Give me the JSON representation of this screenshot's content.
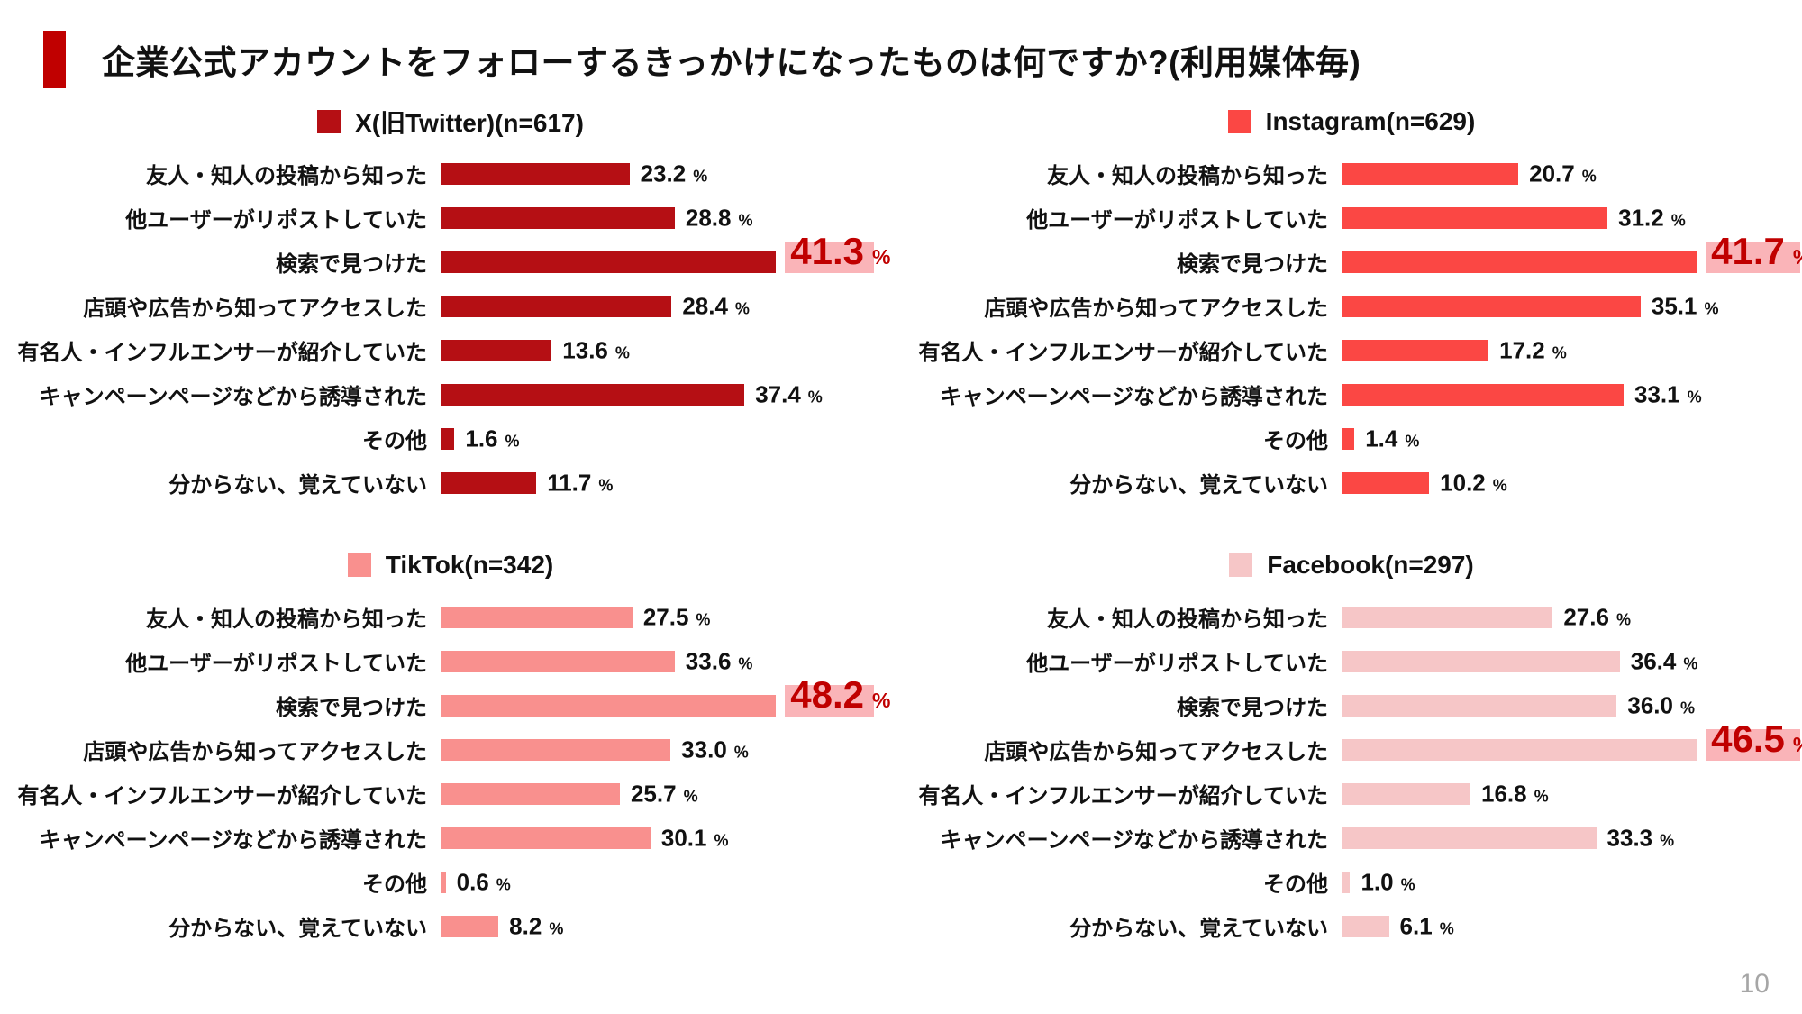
{
  "page": {
    "title": "企業公式アカウントをフォローするきっかけになったものは何ですか?(利用媒体毎)",
    "page_number": "10"
  },
  "colors": {
    "title_accent": "#C00000",
    "highlight_bg": "#FAB4B8",
    "highlight_text": "#C00000",
    "page_number_text": "#A6A6A6",
    "text": "#111111"
  },
  "unit": "%",
  "chart_data": [
    {
      "type": "bar",
      "orientation": "horizontal",
      "legend_label": "X(旧Twitter)(n=617)",
      "platform": "X(旧Twitter)",
      "n": 617,
      "bar_color": "#B50F14",
      "categories": [
        "友人・知人の投稿から知った",
        "他ユーザーがリポストしていた",
        "検索で見つけた",
        "店頭や広告から知ってアクセスした",
        "有名人・インフルエンサーが紹介していた",
        "キャンペーンページなどから誘導された",
        "その他",
        "分からない、覚えていない"
      ],
      "values": [
        23.2,
        28.8,
        41.3,
        28.4,
        13.6,
        37.4,
        1.6,
        11.7
      ],
      "value_labels": [
        "23.2",
        "28.8",
        "41.3",
        "28.4",
        "13.6",
        "37.4",
        "1.6",
        "11.7"
      ],
      "highlight_index": 2
    },
    {
      "type": "bar",
      "orientation": "horizontal",
      "legend_label": "Instagram(n=629)",
      "platform": "Instagram",
      "n": 629,
      "bar_color": "#FB4744",
      "categories": [
        "友人・知人の投稿から知った",
        "他ユーザーがリポストしていた",
        "検索で見つけた",
        "店頭や広告から知ってアクセスした",
        "有名人・インフルエンサーが紹介していた",
        "キャンペーンページなどから誘導された",
        "その他",
        "分からない、覚えていない"
      ],
      "values": [
        20.7,
        31.2,
        41.7,
        35.1,
        17.2,
        33.1,
        1.4,
        10.2
      ],
      "value_labels": [
        "20.7",
        "31.2",
        "41.7",
        "35.1",
        "17.2",
        "33.1",
        "1.4",
        "10.2"
      ],
      "highlight_index": 2
    },
    {
      "type": "bar",
      "orientation": "horizontal",
      "legend_label": "TikTok(n=342)",
      "platform": "TikTok",
      "n": 342,
      "bar_color": "#F9908E",
      "categories": [
        "友人・知人の投稿から知った",
        "他ユーザーがリポストしていた",
        "検索で見つけた",
        "店頭や広告から知ってアクセスした",
        "有名人・インフルエンサーが紹介していた",
        "キャンペーンページなどから誘導された",
        "その他",
        "分からない、覚えていない"
      ],
      "values": [
        27.5,
        33.6,
        48.2,
        33.0,
        25.7,
        30.1,
        0.6,
        8.2
      ],
      "value_labels": [
        "27.5",
        "33.6",
        "48.2",
        "33.0",
        "25.7",
        "30.1",
        "0.6",
        "8.2"
      ],
      "highlight_index": 2
    },
    {
      "type": "bar",
      "orientation": "horizontal",
      "legend_label": "Facebook(n=297)",
      "platform": "Facebook",
      "n": 297,
      "bar_color": "#F6C6C7",
      "categories": [
        "友人・知人の投稿から知った",
        "他ユーザーがリポストしていた",
        "検索で見つけた",
        "店頭や広告から知ってアクセスした",
        "有名人・インフルエンサーが紹介していた",
        "キャンペーンページなどから誘導された",
        "その他",
        "分からない、覚えていない"
      ],
      "values": [
        27.6,
        36.4,
        36.0,
        46.5,
        16.8,
        33.3,
        1.0,
        6.1
      ],
      "value_labels": [
        "27.6",
        "36.4",
        "36.0",
        "46.5",
        "16.8",
        "33.3",
        "1.0",
        "6.1"
      ],
      "highlight_index": 3
    }
  ]
}
